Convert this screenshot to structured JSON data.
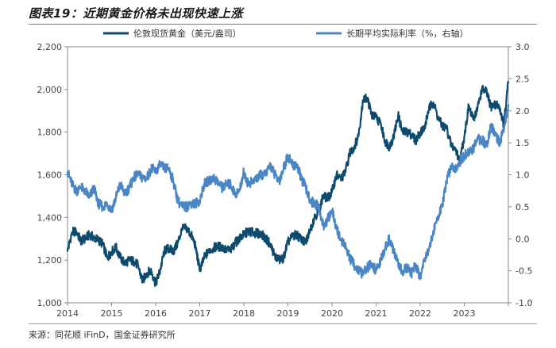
{
  "figure": {
    "title": "图表19：近期黄金价格未出现快速上涨",
    "source": "来源：同花顺 iFinD，国金证券研究所"
  },
  "colors": {
    "gold_series": "#0d4a6e",
    "rate_series": "#4a86c5",
    "axis": "#888888",
    "rule": "#7a7a7a"
  },
  "chart_data": {
    "type": "line",
    "grid": false,
    "legend_position": "top",
    "x_ticks": [
      "2014",
      "2015",
      "2016",
      "2017",
      "2018",
      "2019",
      "2020",
      "2021",
      "2022",
      "2023"
    ],
    "xlim": [
      2014.0,
      2024.0
    ],
    "y_left": {
      "ylim": [
        1000,
        2200
      ],
      "ticks": [
        "1,000",
        "1,200",
        "1,400",
        "1,600",
        "1,800",
        "2,000",
        "2,200"
      ]
    },
    "y_right": {
      "ylim": [
        -1.0,
        3.0
      ],
      "ticks": [
        "-1.0",
        "-0.5",
        "0.0",
        "0.5",
        "1.0",
        "1.5",
        "2.0",
        "2.5",
        "3.0"
      ]
    },
    "series": [
      {
        "name": "伦敦现货黄金（美元/盎司）",
        "axis": "left",
        "x": [
          2014.0,
          2014.1,
          2014.2,
          2014.3,
          2014.4,
          2014.5,
          2014.6,
          2014.7,
          2014.8,
          2014.9,
          2015.0,
          2015.1,
          2015.2,
          2015.3,
          2015.4,
          2015.5,
          2015.6,
          2015.7,
          2015.8,
          2015.9,
          2016.0,
          2016.1,
          2016.2,
          2016.3,
          2016.4,
          2016.5,
          2016.6,
          2016.7,
          2016.8,
          2016.9,
          2017.0,
          2017.1,
          2017.2,
          2017.3,
          2017.4,
          2017.5,
          2017.6,
          2017.7,
          2017.8,
          2017.9,
          2018.0,
          2018.1,
          2018.2,
          2018.3,
          2018.4,
          2018.5,
          2018.6,
          2018.7,
          2018.8,
          2018.9,
          2019.0,
          2019.1,
          2019.2,
          2019.3,
          2019.4,
          2019.5,
          2019.6,
          2019.7,
          2019.8,
          2019.9,
          2020.0,
          2020.1,
          2020.2,
          2020.3,
          2020.4,
          2020.5,
          2020.6,
          2020.7,
          2020.8,
          2020.9,
          2021.0,
          2021.1,
          2021.2,
          2021.3,
          2021.4,
          2021.5,
          2021.6,
          2021.7,
          2021.8,
          2021.9,
          2022.0,
          2022.1,
          2022.2,
          2022.3,
          2022.4,
          2022.5,
          2022.6,
          2022.7,
          2022.8,
          2022.9,
          2023.0,
          2023.1,
          2023.2,
          2023.3,
          2023.4,
          2023.5,
          2023.6,
          2023.7,
          2023.8,
          2023.9,
          2024.0
        ],
        "y": [
          1240,
          1330,
          1335,
          1290,
          1300,
          1320,
          1305,
          1295,
          1275,
          1210,
          1240,
          1260,
          1210,
          1185,
          1200,
          1195,
          1175,
          1100,
          1140,
          1150,
          1090,
          1150,
          1245,
          1255,
          1240,
          1280,
          1345,
          1350,
          1320,
          1270,
          1150,
          1210,
          1245,
          1255,
          1265,
          1260,
          1250,
          1245,
          1280,
          1300,
          1320,
          1335,
          1330,
          1325,
          1320,
          1300,
          1275,
          1220,
          1200,
          1210,
          1285,
          1310,
          1320,
          1295,
          1280,
          1340,
          1400,
          1430,
          1500,
          1490,
          1520,
          1600,
          1580,
          1610,
          1700,
          1730,
          1780,
          1950,
          1960,
          1880,
          1870,
          1840,
          1760,
          1730,
          1780,
          1880,
          1800,
          1800,
          1790,
          1760,
          1800,
          1820,
          1910,
          1940,
          1870,
          1830,
          1820,
          1740,
          1720,
          1660,
          1780,
          1920,
          1860,
          1910,
          2000,
          1990,
          1920,
          1930,
          1920,
          1830,
          2040
        ]
      },
      {
        "name": "长期平均实际利率（%，右轴）",
        "axis": "right",
        "x": [
          2014.0,
          2014.1,
          2014.2,
          2014.3,
          2014.4,
          2014.5,
          2014.6,
          2014.7,
          2014.8,
          2014.9,
          2015.0,
          2015.1,
          2015.2,
          2015.3,
          2015.4,
          2015.5,
          2015.6,
          2015.7,
          2015.8,
          2015.9,
          2016.0,
          2016.1,
          2016.2,
          2016.3,
          2016.4,
          2016.5,
          2016.6,
          2016.7,
          2016.8,
          2016.9,
          2017.0,
          2017.1,
          2017.2,
          2017.3,
          2017.4,
          2017.5,
          2017.6,
          2017.7,
          2017.8,
          2017.9,
          2018.0,
          2018.1,
          2018.2,
          2018.3,
          2018.4,
          2018.5,
          2018.6,
          2018.7,
          2018.8,
          2018.9,
          2019.0,
          2019.1,
          2019.2,
          2019.3,
          2019.4,
          2019.5,
          2019.6,
          2019.7,
          2019.8,
          2019.9,
          2020.0,
          2020.1,
          2020.2,
          2020.3,
          2020.4,
          2020.5,
          2020.6,
          2020.7,
          2020.8,
          2020.9,
          2021.0,
          2021.1,
          2021.2,
          2021.3,
          2021.4,
          2021.5,
          2021.6,
          2021.7,
          2021.8,
          2021.9,
          2022.0,
          2022.1,
          2022.2,
          2022.3,
          2022.4,
          2022.5,
          2022.6,
          2022.7,
          2022.8,
          2022.9,
          2023.0,
          2023.1,
          2023.2,
          2023.3,
          2023.4,
          2023.5,
          2023.6,
          2023.7,
          2023.8,
          2023.9,
          2024.0
        ],
        "y": [
          1.05,
          0.85,
          0.75,
          0.8,
          0.75,
          0.65,
          0.8,
          0.55,
          0.5,
          0.55,
          0.45,
          0.65,
          0.85,
          0.7,
          0.8,
          0.95,
          1.0,
          0.95,
          0.95,
          1.1,
          1.05,
          1.15,
          1.1,
          1.1,
          0.9,
          0.6,
          0.5,
          0.5,
          0.55,
          0.55,
          0.6,
          0.85,
          0.9,
          0.95,
          0.9,
          0.8,
          0.85,
          0.85,
          0.7,
          0.75,
          1.05,
          0.85,
          0.9,
          0.95,
          1.0,
          1.0,
          1.15,
          1.0,
          0.9,
          1.1,
          1.3,
          1.15,
          1.15,
          0.95,
          0.8,
          0.6,
          0.55,
          0.5,
          0.2,
          0.3,
          0.45,
          0.15,
          0.0,
          -0.1,
          -0.3,
          -0.4,
          -0.5,
          -0.55,
          -0.45,
          -0.4,
          -0.5,
          -0.35,
          -0.15,
          0.0,
          -0.2,
          -0.4,
          -0.5,
          -0.45,
          -0.55,
          -0.4,
          -0.6,
          -0.3,
          -0.15,
          0.1,
          0.35,
          0.5,
          0.9,
          1.15,
          1.1,
          1.2,
          1.3,
          1.35,
          1.4,
          1.55,
          1.55,
          1.45,
          1.75,
          1.65,
          1.5,
          1.7,
          2.1
        ]
      }
    ]
  }
}
